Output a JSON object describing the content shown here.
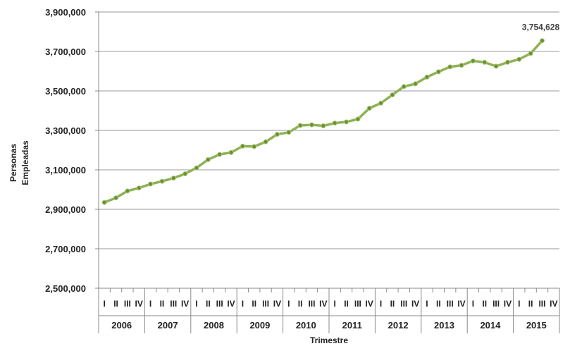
{
  "chart_data": {
    "type": "line",
    "title": "",
    "xlabel": "Trimestre",
    "ylabel": [
      "Personas",
      "Empleadas"
    ],
    "ylim": [
      2500000,
      3900000
    ],
    "yticks": [
      2500000,
      2700000,
      2900000,
      3100000,
      3300000,
      3500000,
      3700000,
      3900000
    ],
    "ytick_labels": [
      "2,500,000",
      "2,700,000",
      "2,900,000",
      "3,100,000",
      "3,300,000",
      "3,500,000",
      "3,700,000",
      "3,900,000"
    ],
    "grid": true,
    "legend": "none",
    "line_color": "#8DB255",
    "marker_color": "#6E8F2F",
    "years": [
      "2006",
      "2007",
      "2008",
      "2009",
      "2010",
      "2011",
      "2012",
      "2013",
      "2014",
      "2015"
    ],
    "quarters": [
      "I",
      "II",
      "III",
      "IV"
    ],
    "values": [
      2935000,
      2958000,
      2993000,
      3008000,
      3028000,
      3042000,
      3058000,
      3080000,
      3110000,
      3152000,
      3178000,
      3188000,
      3220000,
      3218000,
      3242000,
      3280000,
      3290000,
      3325000,
      3328000,
      3323000,
      3337000,
      3343000,
      3357000,
      3412000,
      3438000,
      3480000,
      3522000,
      3536000,
      3570000,
      3597000,
      3622000,
      3630000,
      3652000,
      3645000,
      3625000,
      3645000,
      3660000,
      3690000,
      3754628
    ],
    "annotation": {
      "index": 38,
      "text": "3,754,628"
    }
  }
}
